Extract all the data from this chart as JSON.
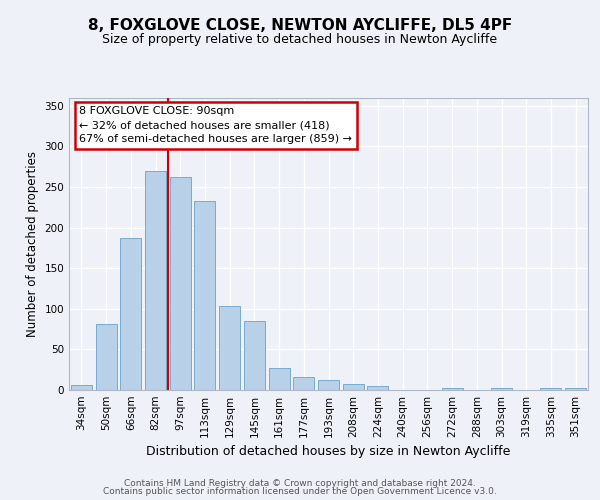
{
  "title1": "8, FOXGLOVE CLOSE, NEWTON AYCLIFFE, DL5 4PF",
  "title2": "Size of property relative to detached houses in Newton Aycliffe",
  "xlabel": "Distribution of detached houses by size in Newton Aycliffe",
  "ylabel": "Number of detached properties",
  "categories": [
    "34sqm",
    "50sqm",
    "66sqm",
    "82sqm",
    "97sqm",
    "113sqm",
    "129sqm",
    "145sqm",
    "161sqm",
    "177sqm",
    "193sqm",
    "208sqm",
    "224sqm",
    "240sqm",
    "256sqm",
    "272sqm",
    "288sqm",
    "303sqm",
    "319sqm",
    "335sqm",
    "351sqm"
  ],
  "values": [
    6,
    81,
    187,
    270,
    262,
    233,
    103,
    85,
    27,
    16,
    12,
    8,
    5,
    0,
    0,
    3,
    0,
    3,
    0,
    3,
    2
  ],
  "bar_color": "#b8d0e8",
  "bar_edge_color": "#7aaace",
  "vline_x": 3.5,
  "vline_color": "#cc0000",
  "annotation_line1": "8 FOXGLOVE CLOSE: 90sqm",
  "annotation_line2": "← 32% of detached houses are smaller (418)",
  "annotation_line3": "67% of semi-detached houses are larger (859) →",
  "annotation_box_color": "#cc0000",
  "ylim": [
    0,
    360
  ],
  "yticks": [
    0,
    50,
    100,
    150,
    200,
    250,
    300,
    350
  ],
  "footer1": "Contains HM Land Registry data © Crown copyright and database right 2024.",
  "footer2": "Contains public sector information licensed under the Open Government Licence v3.0.",
  "bg_color": "#eef2f8",
  "plot_bg_color": "#eef2f8",
  "title1_fontsize": 11,
  "title2_fontsize": 9,
  "xlabel_fontsize": 9,
  "ylabel_fontsize": 8.5,
  "tick_fontsize": 7.5,
  "footer_fontsize": 6.5,
  "annot_fontsize": 8
}
